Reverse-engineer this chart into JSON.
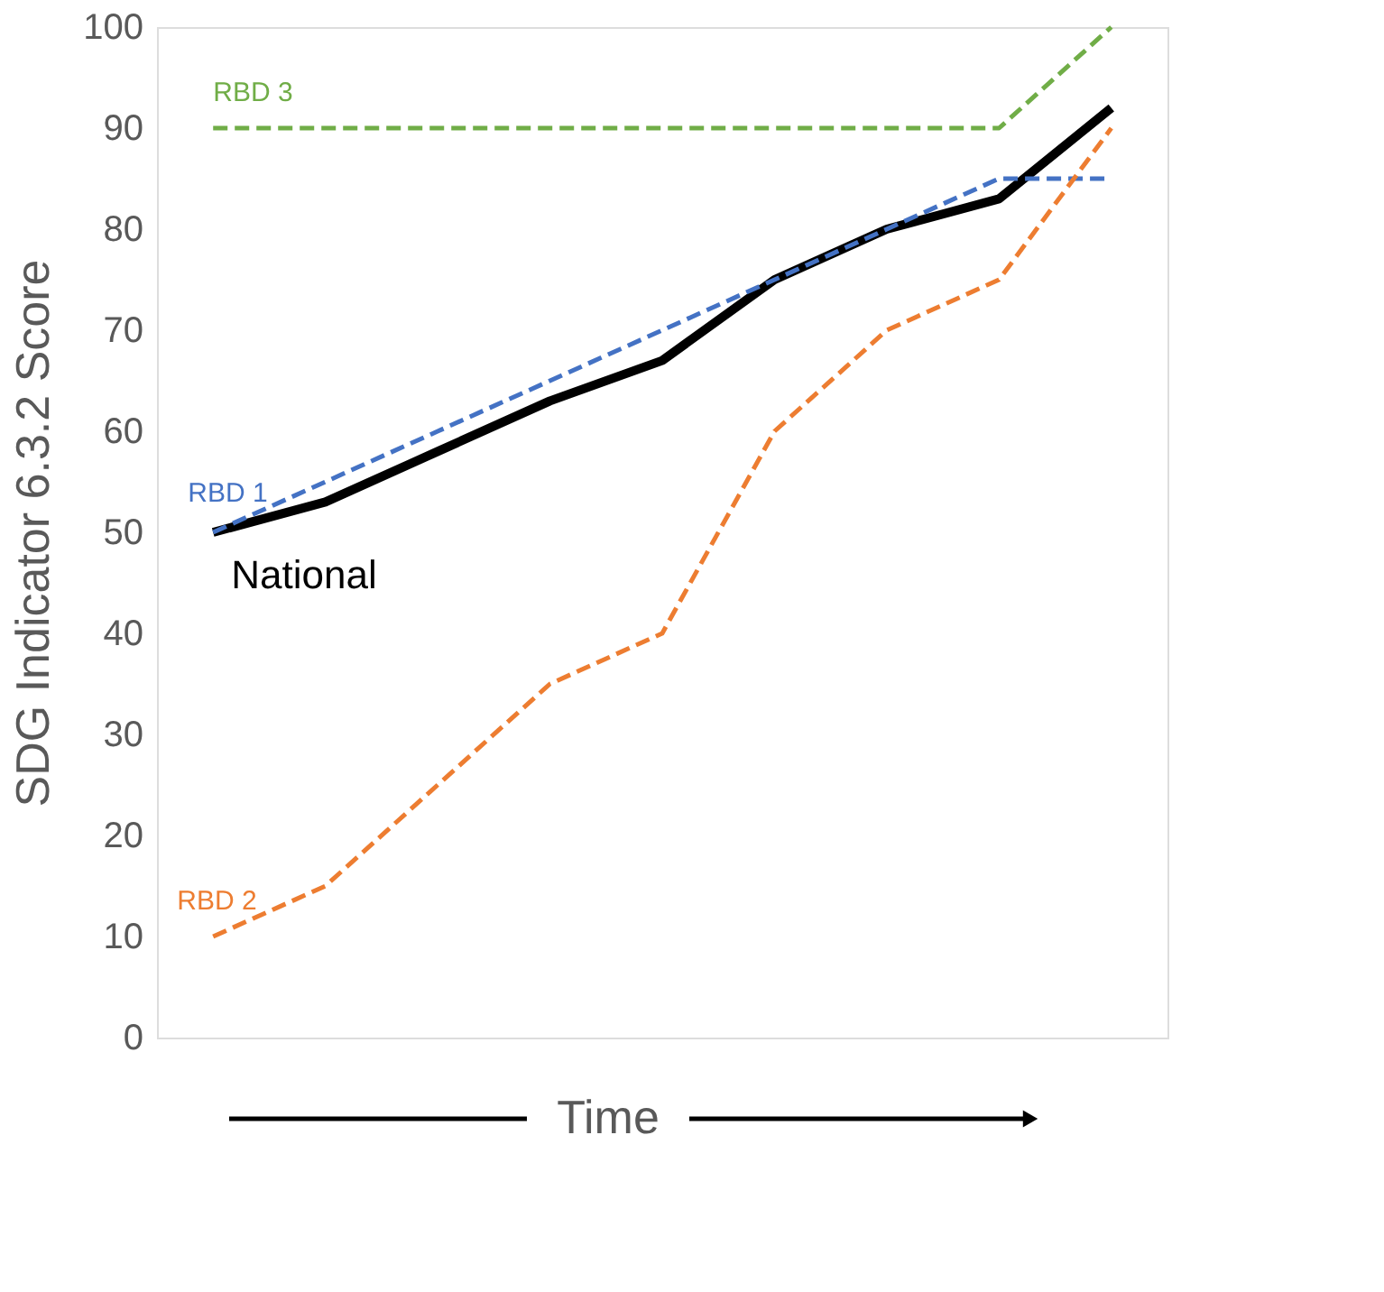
{
  "chart_data": {
    "type": "line",
    "ylabel": "SDG Indicator 6.3.2 Score",
    "xlabel": "Time",
    "categories": [
      null,
      null,
      null,
      null,
      null,
      null,
      null,
      null,
      null
    ],
    "ylim": [
      0,
      100
    ],
    "yticks": [
      0,
      10,
      20,
      30,
      40,
      50,
      60,
      70,
      80,
      90,
      100
    ],
    "grid": false,
    "legend": false,
    "series": [
      {
        "name": "RBD 3",
        "color": "#70ad47",
        "line_style": "dashed",
        "values": [
          90,
          90,
          90,
          90,
          90,
          90,
          90,
          90,
          100
        ]
      },
      {
        "name": "RBD 1",
        "color": "#4472c4",
        "line_style": "dashed",
        "values": [
          50,
          55,
          60,
          65,
          70,
          75,
          80,
          85,
          85
        ]
      },
      {
        "name": "RBD 2",
        "color": "#ed7d31",
        "line_style": "dashed",
        "values": [
          10,
          15,
          25,
          35,
          40,
          60,
          70,
          75,
          90
        ]
      },
      {
        "name": "National",
        "color": "#000000",
        "line_style": "solid",
        "values": [
          50,
          53,
          58,
          63,
          67,
          75,
          80,
          83,
          92
        ]
      }
    ]
  }
}
